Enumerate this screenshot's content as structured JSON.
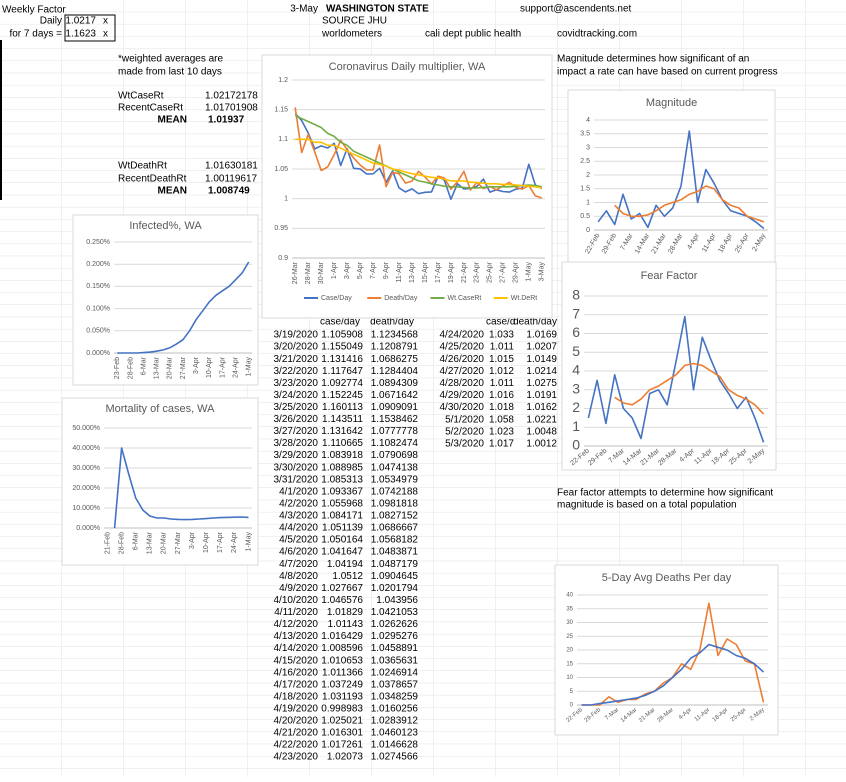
{
  "cells": [
    "Weekly Factor",
    "Daily",
    "1.0217",
    "x",
    "for 7 days =",
    "1.1623",
    "x",
    "3-May",
    "WASHINGTON STATE",
    "support@ascendents.net",
    "SOURCE JHU",
    "worldometers",
    "cali dept public health",
    "covidtracking.com",
    "*weighted averages are",
    "made from last 10 days",
    "WtCaseRt",
    "1.02172178",
    "RecentCaseRt",
    "1.01701908",
    "MEAN",
    "1.01937",
    "WtDeathRt",
    "1.01630181",
    "RecentDeathRt",
    "1.00119617",
    "MEAN",
    "1.008749",
    "Magnitude determines how significant of an",
    "impact a rate can have based on current progress",
    "Fear factor attempts to determine how significant",
    "magnitude is based on a total population"
  ],
  "table": {
    "left": {
      "header": [
        "case/day",
        "death/day"
      ],
      "rows": [
        [
          "3/19/2020",
          "1.105908",
          "1.1234568"
        ],
        [
          "3/20/2020",
          "1.155049",
          "1.1208791"
        ],
        [
          "3/21/2020",
          "1.131416",
          "1.0686275"
        ],
        [
          "3/22/2020",
          "1.117647",
          "1.1284404"
        ],
        [
          "3/23/2020",
          "1.092774",
          "1.0894309"
        ],
        [
          "3/24/2020",
          "1.152245",
          "1.0671642"
        ],
        [
          "3/25/2020",
          "1.160113",
          "1.0909091"
        ],
        [
          "3/26/2020",
          "1.143511",
          "1.1538462"
        ],
        [
          "3/27/2020",
          "1.131642",
          "1.0777778"
        ],
        [
          "3/28/2020",
          "1.110665",
          "1.1082474"
        ],
        [
          "3/29/2020",
          "1.083918",
          "1.0790698"
        ],
        [
          "3/30/2020",
          "1.088985",
          "1.0474138"
        ],
        [
          "3/31/2020",
          "1.085313",
          "1.0534979"
        ],
        [
          "4/1/2020",
          "1.093367",
          "1.0742188"
        ],
        [
          "4/2/2020",
          "1.055968",
          "1.0981818"
        ],
        [
          "4/3/2020",
          "1.084171",
          "1.0827152"
        ],
        [
          "4/4/2020",
          "1.051139",
          "1.0686667"
        ],
        [
          "4/5/2020",
          "1.050164",
          "1.0568182"
        ],
        [
          "4/6/2020",
          "1.041647",
          "1.0483871"
        ],
        [
          "4/7/2020",
          "1.04194",
          "1.0487179"
        ],
        [
          "4/8/2020",
          "1.0512",
          "1.0904645"
        ],
        [
          "4/9/2020",
          "1.027667",
          "1.0201794"
        ],
        [
          "4/10/2020",
          "1.046576",
          "1.043956"
        ],
        [
          "4/11/2020",
          "1.01829",
          "1.0421053"
        ],
        [
          "4/12/2020",
          "1.01143",
          "1.0262626"
        ],
        [
          "4/13/2020",
          "1.016429",
          "1.0295276"
        ],
        [
          "4/14/2020",
          "1.008596",
          "1.0458891"
        ],
        [
          "4/15/2020",
          "1.010653",
          "1.0365631"
        ],
        [
          "4/16/2020",
          "1.011366",
          "1.0246914"
        ],
        [
          "4/17/2020",
          "1.037249",
          "1.0378657"
        ],
        [
          "4/18/2020",
          "1.031193",
          "1.0348259"
        ],
        [
          "4/19/2020",
          "0.998983",
          "1.0160256"
        ],
        [
          "4/20/2020",
          "1.025021",
          "1.0283912"
        ],
        [
          "4/21/2020",
          "1.016301",
          "1.0460123"
        ],
        [
          "4/22/2020",
          "1.017261",
          "1.0146628"
        ],
        [
          "4/23/2020",
          "1.02073",
          "1.0274566"
        ]
      ]
    },
    "right": {
      "header": [
        "case/day",
        "death/day"
      ],
      "rows": [
        [
          "4/24/2020",
          "1.033",
          "1.0169"
        ],
        [
          "4/25/2020",
          "1.011",
          "1.0207"
        ],
        [
          "4/26/2020",
          "1.015",
          "1.0149"
        ],
        [
          "4/27/2020",
          "1.012",
          "1.0214"
        ],
        [
          "4/28/2020",
          "1.011",
          "1.0275"
        ],
        [
          "4/29/2020",
          "1.016",
          "1.0191"
        ],
        [
          "4/30/2020",
          "1.018",
          "1.0162"
        ],
        [
          "5/1/2020",
          "1.058",
          "1.0221"
        ],
        [
          "5/2/2020",
          "1.023",
          "1.0048"
        ],
        [
          "5/3/2020",
          "1.017",
          "1.0012"
        ]
      ]
    }
  },
  "chart_data": [
    {
      "type": "line",
      "title": "Coronavirus Daily multiplier, WA",
      "grid": true,
      "legend": "bottom",
      "categories": [
        "26-Mar",
        null,
        "28-Mar",
        null,
        "30-Mar",
        null,
        "1-Apr",
        null,
        "3-Apr",
        null,
        "5-Apr",
        null,
        "7-Apr",
        null,
        "9-Apr",
        null,
        "11-Apr",
        null,
        "13-Apr",
        null,
        "15-Apr",
        null,
        "17-Apr",
        null,
        "19-Apr",
        null,
        "21-Apr",
        null,
        "23-Apr",
        null,
        "25-Apr",
        null,
        "27-Apr",
        null,
        "29-Apr",
        null,
        "1-May",
        null,
        "3-May"
      ],
      "ylim": [
        0.9,
        1.2
      ],
      "yticks": [
        0.9,
        0.95,
        1,
        1.05,
        1.1,
        1.15,
        1.2
      ],
      "series": [
        {
          "name": "Case/Day",
          "color": "#4472c4",
          "values": [
            1.143511,
            1.131642,
            1.110665,
            1.083918,
            1.088985,
            1.085313,
            1.093367,
            1.055968,
            1.084171,
            1.051139,
            1.050164,
            1.041647,
            1.04194,
            1.0512,
            1.027667,
            1.046576,
            1.01829,
            1.01143,
            1.016429,
            1.008596,
            1.010653,
            1.011366,
            1.037249,
            1.031193,
            0.998983,
            1.025021,
            1.016301,
            1.017261,
            1.02073,
            1.033,
            1.011,
            1.015,
            1.012,
            1.011,
            1.016,
            1.018,
            1.058,
            1.023,
            1.017
          ]
        },
        {
          "name": "Death/Day",
          "color": "#ed7d31",
          "values": [
            1.1538462,
            1.0777778,
            1.1082474,
            1.0790698,
            1.0474138,
            1.0534979,
            1.0742188,
            1.0981818,
            1.0827152,
            1.0686667,
            1.0568182,
            1.0483871,
            1.0487179,
            1.0904645,
            1.0201794,
            1.043956,
            1.0421053,
            1.0262626,
            1.0295276,
            1.0458891,
            1.0365631,
            1.0246914,
            1.0378657,
            1.0348259,
            1.0160256,
            1.0283912,
            1.0460123,
            1.0146628,
            1.0274566,
            1.0169,
            1.0207,
            1.0149,
            1.0214,
            1.0275,
            1.0191,
            1.0162,
            1.0221,
            1.0048,
            1.0012
          ]
        },
        {
          "name": "Wt.CaseRt",
          "color": "#70ad47",
          "values": [
            1.14,
            1.135,
            1.13,
            1.125,
            1.12,
            1.11,
            1.105,
            1.095,
            1.09,
            1.08,
            1.075,
            1.07,
            1.065,
            1.06,
            1.055,
            1.05,
            1.045,
            1.04,
            1.035,
            1.03,
            1.028,
            1.025,
            1.023,
            1.021,
            1.02,
            1.02,
            1.019,
            1.018,
            1.018,
            1.019,
            1.02,
            1.02,
            1.02,
            1.02,
            1.021,
            1.022,
            1.023,
            1.022,
            1.02
          ]
        },
        {
          "name": "Wt.DeRt",
          "color": "#ffc000",
          "values": [
            1.1,
            1.1,
            1.1,
            1.095,
            1.095,
            1.09,
            1.09,
            1.085,
            1.08,
            1.075,
            1.07,
            1.065,
            1.06,
            1.058,
            1.055,
            1.05,
            1.048,
            1.045,
            1.042,
            1.04,
            1.038,
            1.036,
            1.035,
            1.033,
            1.03,
            1.03,
            1.03,
            1.028,
            1.027,
            1.026,
            1.025,
            1.025,
            1.024,
            1.024,
            1.023,
            1.022,
            1.021,
            1.02,
            1.018
          ]
        }
      ]
    },
    {
      "type": "line",
      "title": "Magnitude",
      "grid": true,
      "categories": [
        "22-Feb",
        null,
        "29-Feb",
        null,
        "7-Mar",
        null,
        "14-Mar",
        null,
        "21-Mar",
        null,
        "28-Mar",
        null,
        "4-Apr",
        null,
        "11-Apr",
        null,
        "18-Apr",
        null,
        "25-Apr",
        null,
        "2-May"
      ],
      "ylim": [
        0,
        4
      ],
      "yticks": [
        0,
        0.5,
        1,
        1.5,
        2,
        2.5,
        3,
        3.5,
        4
      ],
      "series": [
        {
          "color": "#4472c4",
          "values": [
            0.3,
            0.7,
            0.2,
            1.3,
            0.4,
            0.6,
            0.1,
            0.9,
            0.5,
            0.8,
            1.6,
            3.6,
            1.0,
            2.2,
            1.7,
            1.1,
            0.7,
            0.6,
            0.5,
            0.3,
            0.05
          ]
        },
        {
          "color": "#ed7d31",
          "values": [
            null,
            null,
            0.9,
            0.6,
            0.5,
            0.5,
            0.55,
            0.7,
            0.9,
            1.0,
            1.1,
            1.3,
            1.4,
            1.6,
            1.5,
            1.1,
            0.9,
            0.8,
            0.5,
            0.4,
            0.3
          ]
        }
      ]
    },
    {
      "type": "line",
      "title": "Fear Factor",
      "grid": true,
      "categories": [
        "22-Feb",
        null,
        "29-Feb",
        null,
        "7-Mar",
        null,
        "14-Mar",
        null,
        "21-Mar",
        null,
        "28-Mar",
        null,
        "4-Apr",
        null,
        "11-Apr",
        null,
        "18-Apr",
        null,
        "25-Apr",
        null,
        "2-May"
      ],
      "ylim": [
        0,
        8
      ],
      "yticks": [
        0,
        1,
        2,
        3,
        4,
        5,
        6,
        7,
        8
      ],
      "series": [
        {
          "color": "#4472c4",
          "values": [
            1.5,
            3.5,
            1.2,
            3.8,
            2.0,
            1.5,
            0.4,
            2.8,
            3.0,
            2.2,
            4.5,
            6.9,
            3.0,
            5.8,
            4.6,
            3.5,
            2.8,
            2.0,
            2.6,
            1.5,
            0.2
          ]
        },
        {
          "color": "#ed7d31",
          "values": [
            null,
            null,
            null,
            2.6,
            2.3,
            2.2,
            2.5,
            3.0,
            3.2,
            3.5,
            3.8,
            4.3,
            4.4,
            4.3,
            4.0,
            3.7,
            3.0,
            2.7,
            2.5,
            2.2,
            1.7
          ]
        }
      ]
    },
    {
      "type": "line",
      "title": "5-Day Avg Deaths Per day",
      "grid": true,
      "categories": [
        "22-Feb",
        null,
        "29-Feb",
        null,
        "7-Mar",
        null,
        "14-Mar",
        null,
        "21-Mar",
        null,
        "28-Mar",
        null,
        "4-Apr",
        null,
        "11-Apr",
        null,
        "18-Apr",
        null,
        "25-Apr",
        null,
        "2-May"
      ],
      "ylim": [
        0,
        40
      ],
      "yticks": [
        0,
        5,
        10,
        15,
        20,
        25,
        30,
        35,
        40
      ],
      "series": [
        {
          "color": "#ed7d31",
          "values": [
            0,
            0,
            0,
            3,
            1,
            2,
            2,
            4,
            5,
            8,
            10,
            15,
            13,
            20,
            37,
            18,
            24,
            22,
            16,
            15,
            1
          ]
        },
        {
          "color": "#4472c4",
          "values": [
            0,
            0,
            0.5,
            1,
            1.5,
            2,
            2.5,
            3.5,
            5,
            7,
            10,
            13,
            17,
            19,
            22,
            21,
            20,
            18,
            17,
            15,
            12
          ]
        }
      ]
    },
    {
      "type": "line",
      "title": "Infected%, WA",
      "grid": true,
      "categories": [
        "23-Feb",
        null,
        "28-Feb",
        null,
        "6-Mar",
        null,
        "13-Mar",
        null,
        "20-Mar",
        null,
        "27-Mar",
        null,
        "3-Apr",
        null,
        "10-Apr",
        null,
        "17-Apr",
        null,
        "24-Apr",
        null,
        "1-May"
      ],
      "ylim": [
        0,
        0.25
      ],
      "yticks": [
        {
          "value": 0,
          "label": "0.000%"
        },
        {
          "value": 0.05,
          "label": "0.050%"
        },
        {
          "value": 0.1,
          "label": "0.100%"
        },
        {
          "value": 0.15,
          "label": "0.150%"
        },
        {
          "value": 0.2,
          "label": "0.200%"
        },
        {
          "value": 0.25,
          "label": "0.250%"
        }
      ],
      "series": [
        {
          "color": "#4472c4",
          "values": [
            0,
            0,
            0,
            0,
            0.001,
            0.002,
            0.004,
            0.007,
            0.012,
            0.02,
            0.03,
            0.05,
            0.075,
            0.095,
            0.115,
            0.13,
            0.14,
            0.15,
            0.165,
            0.18,
            0.205
          ]
        }
      ]
    },
    {
      "type": "line",
      "title": "Mortality of cases, WA",
      "grid": true,
      "categories": [
        "21-Feb",
        null,
        "28-Feb",
        null,
        "6-Mar",
        null,
        "13-Mar",
        null,
        "20-Mar",
        null,
        "27-Mar",
        null,
        "3-Apr",
        null,
        "10-Apr",
        null,
        "17-Apr",
        null,
        "24-Apr",
        null,
        "1-May"
      ],
      "ylim": [
        0,
        50
      ],
      "yticks": [
        {
          "value": 0,
          "label": "0.000%"
        },
        {
          "value": 10,
          "label": "10.000%"
        },
        {
          "value": 20,
          "label": "20.000%"
        },
        {
          "value": 30,
          "label": "30.000%"
        },
        {
          "value": 40,
          "label": "40.000%"
        },
        {
          "value": 50,
          "label": "50.000%"
        }
      ],
      "series": [
        {
          "color": "#4472c4",
          "values": [
            null,
            0,
            40,
            27,
            15,
            9,
            6,
            5,
            5,
            4.5,
            4.3,
            4.2,
            4.3,
            4.5,
            4.7,
            5,
            5.2,
            5.3,
            5.4,
            5.5,
            5.3
          ]
        }
      ]
    }
  ]
}
